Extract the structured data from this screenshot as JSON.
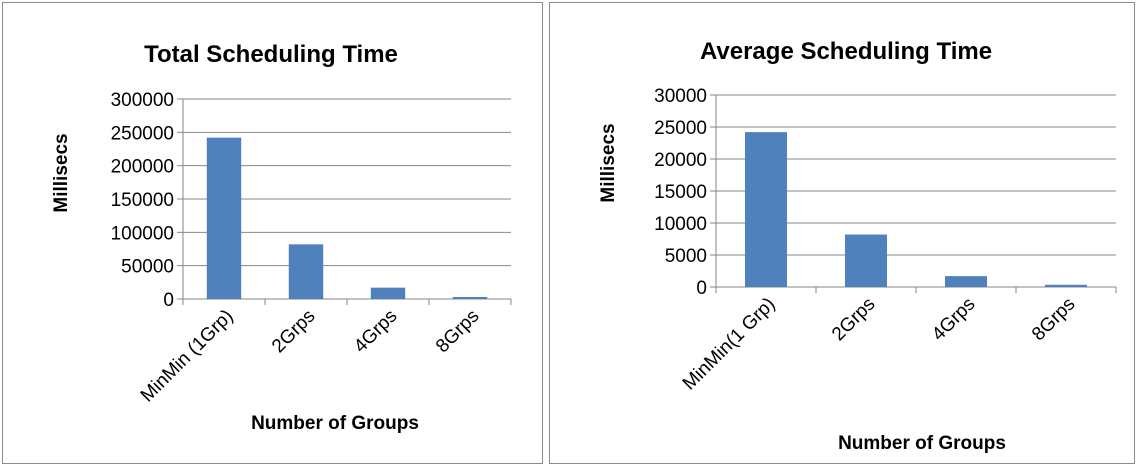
{
  "chart_data": [
    {
      "type": "bar",
      "title": "Total Scheduling Time",
      "xlabel": "Number of Groups",
      "ylabel": "Millisecs",
      "categories": [
        "MinMin (1Grp)",
        "2Grps",
        "4Grps",
        "8Grps"
      ],
      "values": [
        242000,
        82000,
        17000,
        3000
      ],
      "ylim": [
        0,
        300000
      ],
      "yticks": [
        0,
        50000,
        100000,
        150000,
        200000,
        250000,
        300000
      ],
      "grid": true,
      "bar_color": "#4f81bd"
    },
    {
      "type": "bar",
      "title": "Average Scheduling Time",
      "xlabel": "Number of Groups",
      "ylabel": "Millisecs",
      "categories": [
        "MinMin(1 Grp)",
        "2Grps",
        "4Grps",
        "8Grps"
      ],
      "values": [
        24200,
        8200,
        1700,
        350
      ],
      "ylim": [
        0,
        30000
      ],
      "yticks": [
        0,
        5000,
        10000,
        15000,
        20000,
        25000,
        30000
      ],
      "grid": true,
      "bar_color": "#4f81bd"
    }
  ]
}
